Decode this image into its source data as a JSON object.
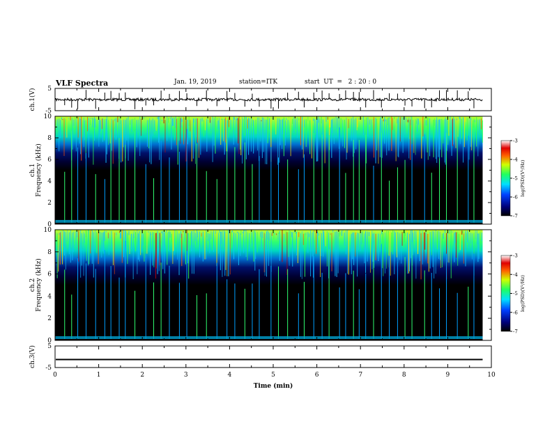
{
  "header": {
    "title": "VLF Spectra",
    "date": "Jan. 19, 2019",
    "station": "station=ITK",
    "start": "start  UT  =   2 : 20 : 0"
  },
  "chart_data": {
    "type": "spectrogram",
    "x_axis": {
      "label": "Time  (min)",
      "range": [
        0,
        10
      ],
      "ticks": [
        "0",
        "1",
        "2",
        "3",
        "4",
        "5",
        "6",
        "7",
        "8",
        "9",
        "10"
      ],
      "data_end": 9.8
    },
    "panels": [
      {
        "id": "ch1-waveform",
        "type": "line",
        "ylabel": "ch.1(V)",
        "ylim": [
          -5,
          5
        ],
        "ticks": [
          "5",
          "-5"
        ],
        "baseline": 0
      },
      {
        "id": "ch1-spectrogram",
        "type": "heatmap",
        "ylabel_top": "ch.1",
        "ylabel": "Frequency  (kHz)",
        "ylim": [
          0,
          10
        ],
        "ticks": [
          "0",
          "2",
          "4",
          "6",
          "8",
          "10"
        ],
        "colorbar": {
          "label": "log(PSD)(V²/Hz)",
          "range": [
            -7,
            -3
          ],
          "ticks": [
            "-3",
            "-4",
            "-5",
            "-6",
            "-7"
          ]
        }
      },
      {
        "id": "ch2-spectrogram",
        "type": "heatmap",
        "ylabel_top": "ch.2",
        "ylabel": "Frequency  (kHz)",
        "ylim": [
          0,
          10
        ],
        "ticks": [
          "0",
          "2",
          "4",
          "6",
          "8",
          "10"
        ],
        "colorbar": {
          "label": "log(PSD)(V²/Hz)",
          "range": [
            -7,
            -3
          ],
          "ticks": [
            "-3",
            "-4",
            "-5",
            "-6",
            "-7"
          ]
        }
      },
      {
        "id": "ch3-waveform",
        "type": "line",
        "ylabel": "ch.3(V)",
        "ylim": [
          -5,
          5
        ],
        "ticks": [
          "5",
          "-5"
        ],
        "baseline": -1.3
      }
    ],
    "spikes_min": [
      0.22,
      0.38,
      0.52,
      0.71,
      0.93,
      1.14,
      1.28,
      1.47,
      1.61,
      1.83,
      2.08,
      2.26,
      2.43,
      2.62,
      2.85,
      3.02,
      3.25,
      3.47,
      3.71,
      3.94,
      4.12,
      4.35,
      4.52,
      4.68,
      4.95,
      5.12,
      5.33,
      5.58,
      5.71,
      5.93,
      6.12,
      6.28,
      6.52,
      6.66,
      6.84,
      6.97,
      7.12,
      7.3,
      7.48,
      7.66,
      7.85,
      8.02,
      8.18,
      8.47,
      8.63,
      8.81,
      8.97,
      9.22,
      9.47,
      9.6
    ]
  }
}
